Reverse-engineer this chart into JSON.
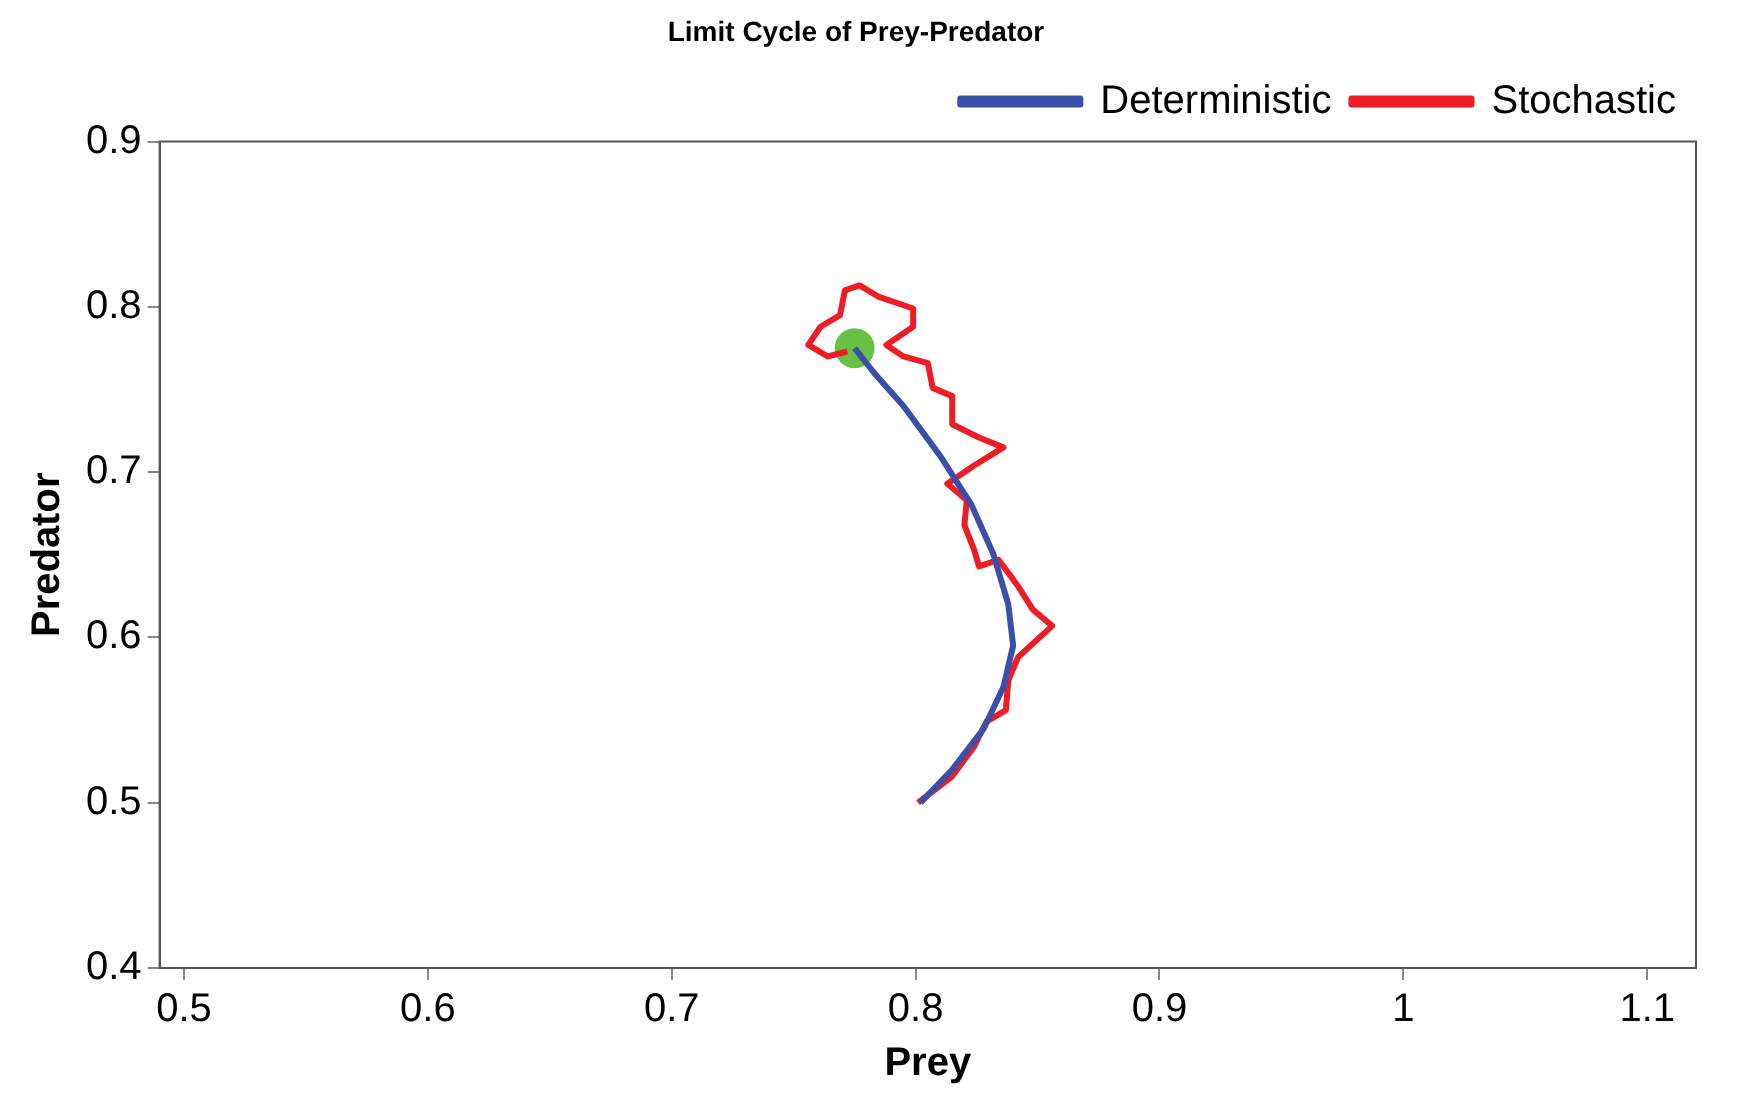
{
  "chart_data": {
    "type": "line",
    "title": "Limit Cycle of Prey-Predator",
    "xlabel": "Prey",
    "ylabel": "Predator",
    "xlim": [
      0.49,
      1.12
    ],
    "xticks": [
      0.5,
      0.6,
      0.7,
      0.8,
      0.9,
      1,
      1.1
    ],
    "ylim": [
      0.4,
      0.9
    ],
    "yticks": [
      0.4,
      0.5,
      0.6,
      0.7,
      0.8,
      0.9
    ],
    "grid": false,
    "legend": "top right",
    "marker": "none",
    "line_style": "solid",
    "series": [
      {
        "name": "Deterministic",
        "color": "#3a4fa8",
        "x": [
          0.802,
          0.815,
          0.828,
          0.836,
          0.84,
          0.838,
          0.832,
          0.823,
          0.81,
          0.795,
          0.783,
          0.775
        ],
        "values": [
          0.5,
          0.52,
          0.545,
          0.57,
          0.595,
          0.62,
          0.65,
          0.68,
          0.71,
          0.74,
          0.76,
          0.775
        ]
      },
      {
        "name": "Stochastic",
        "color": "#ee1c24",
        "x": [
          0.801,
          0.815,
          0.824,
          0.829,
          0.837,
          0.838,
          0.842,
          0.856,
          0.848,
          0.842,
          0.834,
          0.826,
          0.824,
          0.82,
          0.821,
          0.813,
          0.824,
          0.836,
          0.826,
          0.815,
          0.815,
          0.807,
          0.805,
          0.795,
          0.788,
          0.799,
          0.799,
          0.785,
          0.777,
          0.771,
          0.769,
          0.761,
          0.756,
          0.764,
          0.772
        ],
        "values": [
          0.5,
          0.516,
          0.534,
          0.549,
          0.556,
          0.574,
          0.588,
          0.607,
          0.617,
          0.631,
          0.647,
          0.643,
          0.653,
          0.668,
          0.683,
          0.693,
          0.704,
          0.715,
          0.721,
          0.729,
          0.746,
          0.751,
          0.766,
          0.77,
          0.777,
          0.788,
          0.799,
          0.806,
          0.813,
          0.81,
          0.795,
          0.788,
          0.777,
          0.77,
          0.773
        ]
      },
      {
        "type": "scatter",
        "color": "#6abf45",
        "marker": "circle",
        "x": [
          0.775
        ],
        "values": [
          0.775
        ]
      }
    ]
  }
}
